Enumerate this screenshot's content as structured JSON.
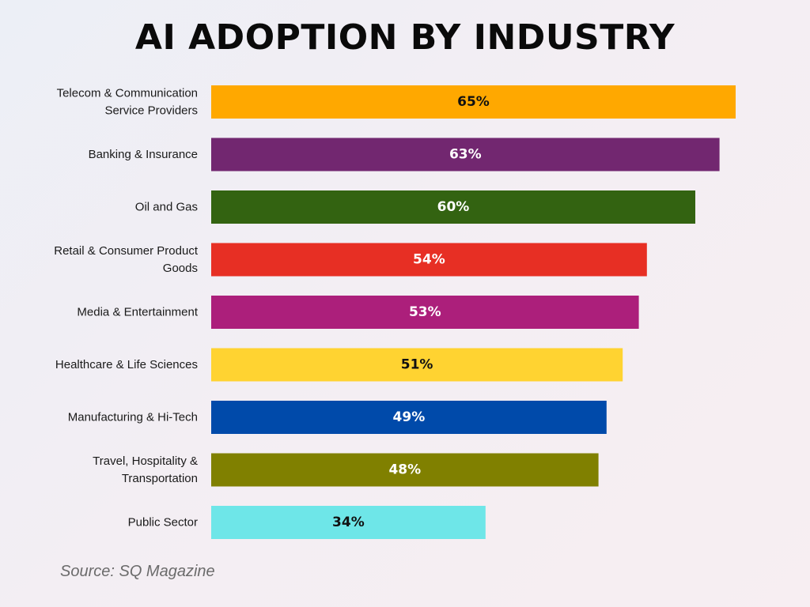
{
  "chart_data": {
    "type": "bar",
    "orientation": "horizontal",
    "title": "AI ADOPTION BY INDUSTRY",
    "categories": [
      [
        "Telecom & Communication",
        "Service Providers"
      ],
      [
        "Banking & Insurance"
      ],
      [
        "Oil and Gas"
      ],
      [
        "Retail & Consumer Product",
        "Goods"
      ],
      [
        "Media & Entertainment"
      ],
      [
        "Healthcare & Life Sciences"
      ],
      [
        "Manufacturing & Hi-Tech"
      ],
      [
        "Travel, Hospitality &",
        "Transportation"
      ],
      [
        "Public Sector"
      ]
    ],
    "values": [
      65,
      63,
      60,
      54,
      53,
      51,
      49,
      48,
      34
    ],
    "value_labels": [
      "65%",
      "63%",
      "60%",
      "54%",
      "53%",
      "51%",
      "49%",
      "48%",
      "34%"
    ],
    "colors": [
      "#FFA800",
      "#722770",
      "#336311",
      "#E72F24",
      "#AC1F7B",
      "#FFD331",
      "#004AAA",
      "#808000",
      "#6EE6E8"
    ],
    "label_colors": [
      "#111111",
      "#ffffff",
      "#ffffff",
      "#ffffff",
      "#ffffff",
      "#111111",
      "#ffffff",
      "#ffffff",
      "#111111"
    ],
    "xlim": [
      0,
      65
    ],
    "xlabel": "",
    "ylabel": "",
    "grid": false,
    "legend": "none"
  },
  "source": "Source: SQ Magazine"
}
